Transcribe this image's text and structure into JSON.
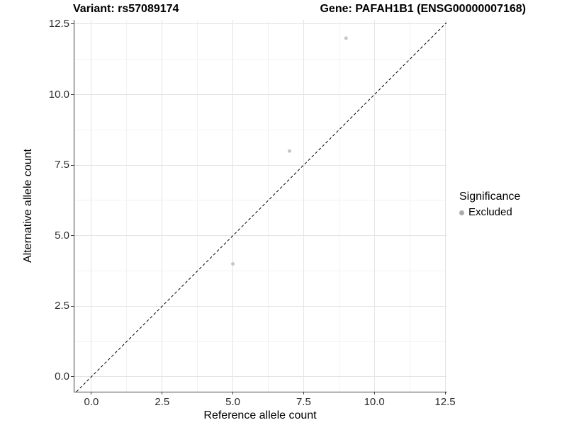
{
  "title": {
    "left": "Variant: rs57089174",
    "right": "Gene: PAFAH1B1 (ENSG00000007168)"
  },
  "chart_data": {
    "type": "scatter",
    "title": "Variant: rs57089174    Gene: PAFAH1B1 (ENSG00000007168)",
    "xlabel": "Reference allele count",
    "ylabel": "Alternative allele count",
    "xlim": [
      -0.6,
      12.55
    ],
    "ylim": [
      -0.53,
      12.65
    ],
    "xticks": [
      0.0,
      2.5,
      5.0,
      7.5,
      10.0,
      12.5
    ],
    "yticks": [
      0.0,
      2.5,
      5.0,
      7.5,
      10.0,
      12.5
    ],
    "grid": "major-and-minor",
    "series": [
      {
        "name": "Excluded",
        "points": [
          [
            5,
            4
          ],
          [
            7,
            8
          ],
          [
            9,
            12
          ]
        ],
        "color": "#c6c6c6",
        "point_radius": 2.5
      }
    ],
    "reference_line": {
      "type": "y=x",
      "style": "dashed",
      "color": "#000000"
    },
    "legend": {
      "title": "Significance",
      "position": "right",
      "entries": [
        {
          "label": "Excluded",
          "color": "#ababab"
        }
      ]
    },
    "colors": {
      "axis_line": "#404040",
      "grid_major": "#e4e4e4",
      "grid_minor": "#f2f2f2",
      "tick_text": "#2b2b2b"
    }
  }
}
